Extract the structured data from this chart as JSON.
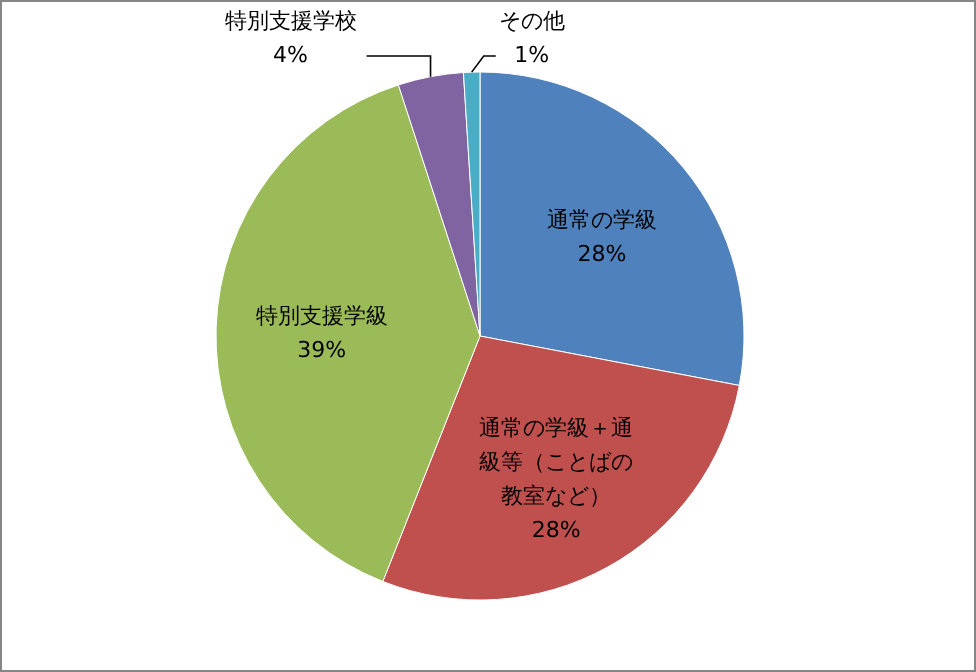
{
  "chart_data": {
    "type": "pie",
    "categories": [
      "通常の学級",
      "通常の学級＋通級等（ことばの教室など）",
      "特別支援学級",
      "特別支援学校",
      "その他"
    ],
    "values": [
      28,
      28,
      39,
      4,
      1
    ],
    "colors": [
      "#4f81bd",
      "#c0504d",
      "#9bbb59",
      "#8064a2",
      "#4bacc6"
    ],
    "value_labels": [
      "28%",
      "28%",
      "39%",
      "4%",
      "1%"
    ],
    "legend": false
  }
}
